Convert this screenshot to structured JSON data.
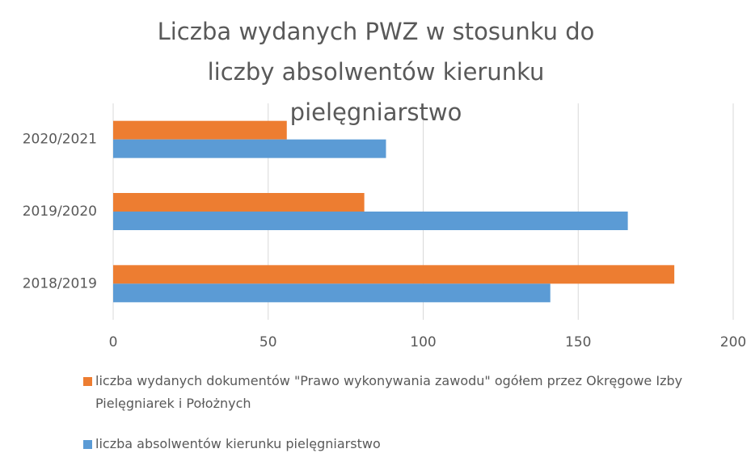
{
  "chart_data": {
    "type": "hbar",
    "title": "Liczba wydanych PWZ w stosunku do liczby absolwentów kierunku pielęgniarstwo",
    "categories": [
      "2020/2021",
      "2019/2020",
      "2018/2019"
    ],
    "series": [
      {
        "name": "liczba wydanych dokumentów \"Prawo wykonywania zawodu\" ogółem przez Okręgowe Izby Pielęgniarek i Położnych",
        "color": "#ed7d31",
        "values": [
          56,
          81,
          181
        ]
      },
      {
        "name": "liczba absolwentów kierunku pielęgniarstwo",
        "color": "#5b9bd5",
        "values": [
          88,
          166,
          141
        ]
      }
    ],
    "xlim": [
      0,
      200
    ],
    "xticks": [
      0,
      50,
      100,
      150,
      200
    ],
    "grid": true
  }
}
